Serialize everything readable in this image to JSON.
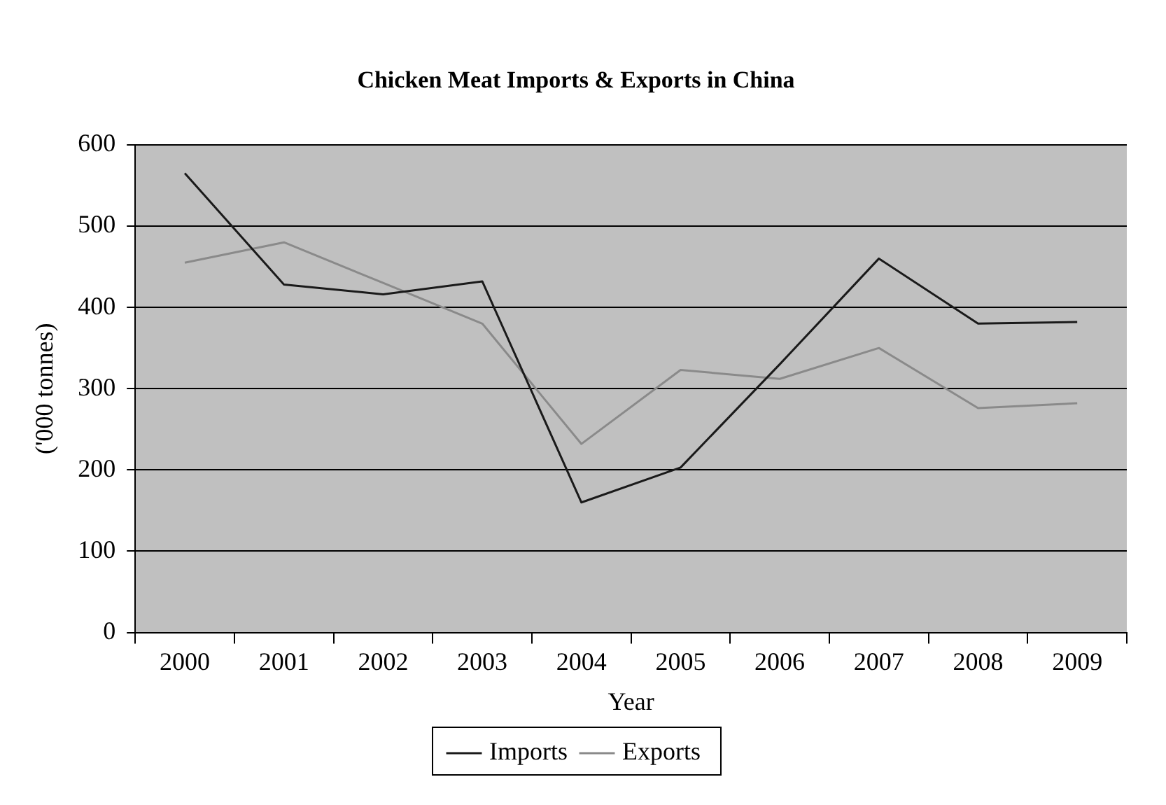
{
  "chart_data": {
    "type": "line",
    "title": "Chicken Meat Imports & Exports in China",
    "xlabel": "Year",
    "ylabel": "('000 tonnes)",
    "categories": [
      "2000",
      "2001",
      "2002",
      "2003",
      "2004",
      "2005",
      "2006",
      "2007",
      "2008",
      "2009"
    ],
    "series": [
      {
        "name": "Imports",
        "color": "#1a1a1a",
        "values": [
          565,
          428,
          416,
          432,
          160,
          203,
          330,
          460,
          380,
          382
        ]
      },
      {
        "name": "Exports",
        "color": "#8a8a8a",
        "values": [
          455,
          480,
          430,
          380,
          232,
          323,
          312,
          350,
          276,
          282
        ]
      }
    ],
    "ylim": [
      0,
      600
    ],
    "yticks": [
      0,
      100,
      200,
      300,
      400,
      500,
      600
    ],
    "grid": "y",
    "legend": "bottom",
    "marker": "none",
    "line_style": "solid"
  }
}
